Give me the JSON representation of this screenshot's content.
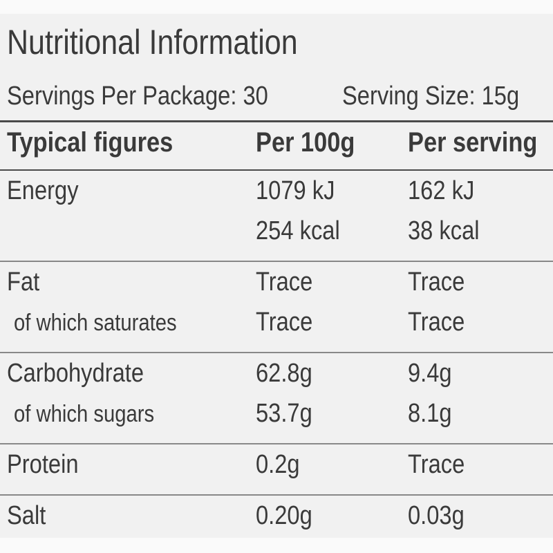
{
  "header": {
    "title": "Nutritional Information",
    "servings_per_package": "Servings Per Package: 30",
    "serving_size": "Serving Size: 15g"
  },
  "table": {
    "columns": [
      "Typical figures",
      "Per 100g",
      "Per serving"
    ],
    "groups": [
      {
        "rows": [
          [
            "Energy",
            "1079 kJ",
            "162 kJ"
          ],
          [
            null,
            "254 kcal",
            "38 kcal"
          ]
        ]
      },
      {
        "rows": [
          [
            "Fat",
            "Trace",
            "Trace"
          ],
          [
            "of which saturates",
            "Trace",
            "Trace"
          ]
        ]
      },
      {
        "rows": [
          [
            "Carbohydrate",
            "62.8g",
            "9.4g"
          ],
          [
            "of which sugars",
            "53.7g",
            "8.1g"
          ]
        ]
      },
      {
        "rows": [
          [
            "Protein",
            "0.2g",
            "Trace"
          ]
        ]
      },
      {
        "rows": [
          [
            "Salt",
            "0.20g",
            "0.03g"
          ]
        ]
      }
    ]
  }
}
